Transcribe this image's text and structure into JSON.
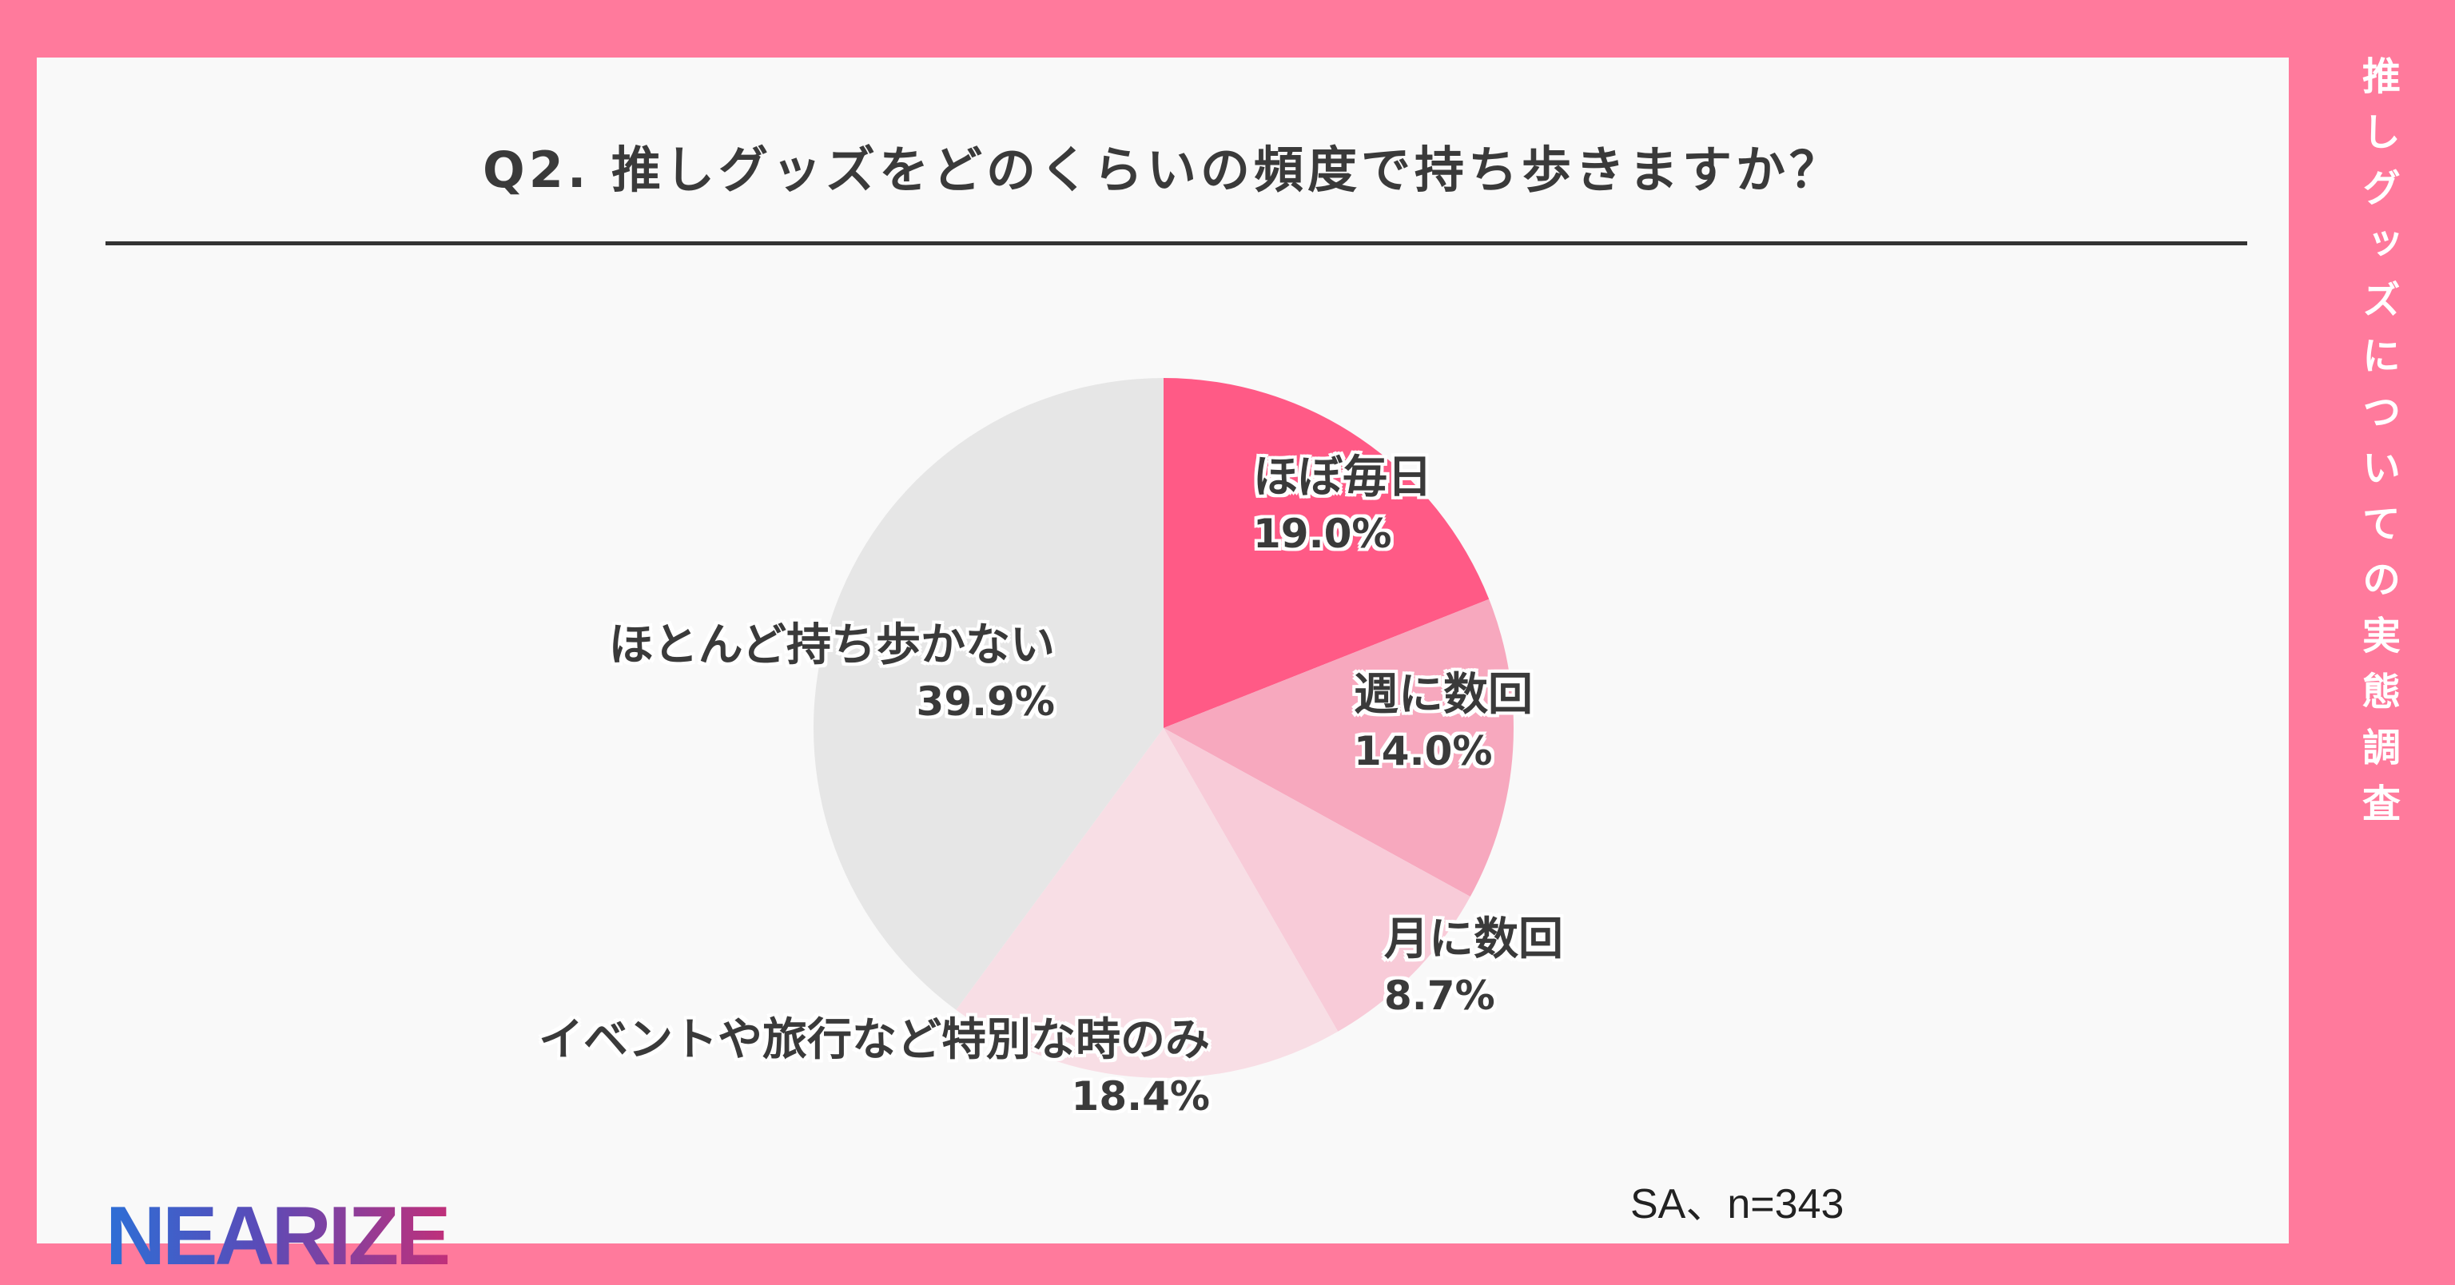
{
  "side_title": "推しグッズについての実態調査",
  "note": "SA、n=343",
  "logo": "NEARIZE",
  "colors": {
    "background": "#FF7A9C",
    "card": "#F9F9F9"
  },
  "chart_data": {
    "type": "pie",
    "title": "Q2. 推しグッズをどのくらいの頻度で持ち歩きますか？",
    "slices": [
      {
        "label": "ほぼ毎日",
        "value": 19.0,
        "value_label": "19.0%",
        "color": "#FF5A86"
      },
      {
        "label": "週に数回",
        "value": 14.0,
        "value_label": "14.0%",
        "color": "#F7A8BE"
      },
      {
        "label": "月に数回",
        "value": 8.7,
        "value_label": "8.7%",
        "color": "#F8CBD8"
      },
      {
        "label": "イベントや旅行など特別な時のみ",
        "value": 18.4,
        "value_label": "18.4%",
        "color": "#F8DEE5"
      },
      {
        "label": "ほとんど持ち歩かない",
        "value": 39.9,
        "value_label": "39.9%",
        "color": "#E6E6E6"
      }
    ]
  }
}
